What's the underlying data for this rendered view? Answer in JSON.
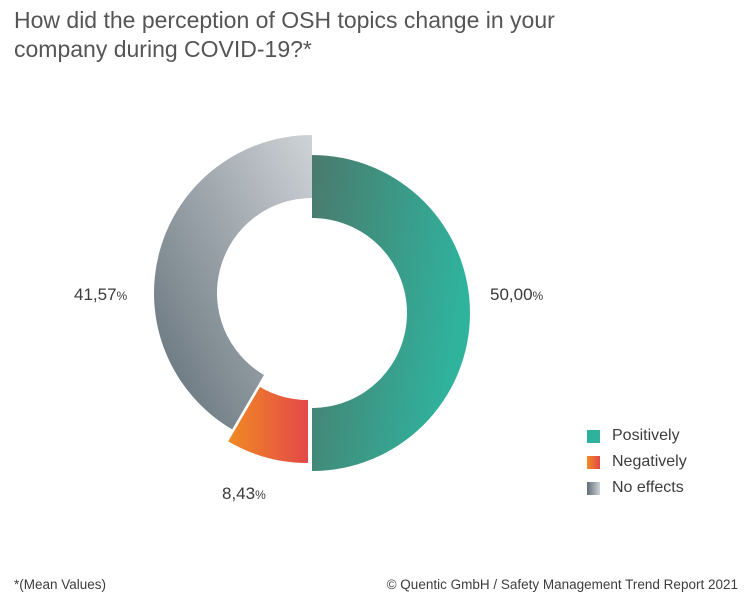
{
  "title_line1": "How did the perception of OSH topics change in your",
  "title_line2": "company during COVID-19?*",
  "footnote": "*(Mean Values)",
  "credit": "© Quentic GmbH / Safety Management Trend Report 2021",
  "chart_data": {
    "type": "pie",
    "variant": "donut",
    "categories": [
      "Positively",
      "Negatively",
      "No effects"
    ],
    "values": [
      50.0,
      8.43,
      41.57
    ],
    "value_labels": [
      "50,00",
      "8,43",
      "41,57"
    ],
    "unit_suffix": "%",
    "colors": [
      "#2fb29c",
      "#e84c3d",
      "#8a969e"
    ],
    "gradients": [
      [
        "#4a7a6c",
        "#2fb39d"
      ],
      [
        "#f08a24",
        "#e44848"
      ],
      [
        "#5f6d76",
        "#cfd3d7"
      ]
    ],
    "legend": "bottom-right",
    "legend_labels": [
      "Positively",
      "Negatively",
      "No effects"
    ]
  }
}
